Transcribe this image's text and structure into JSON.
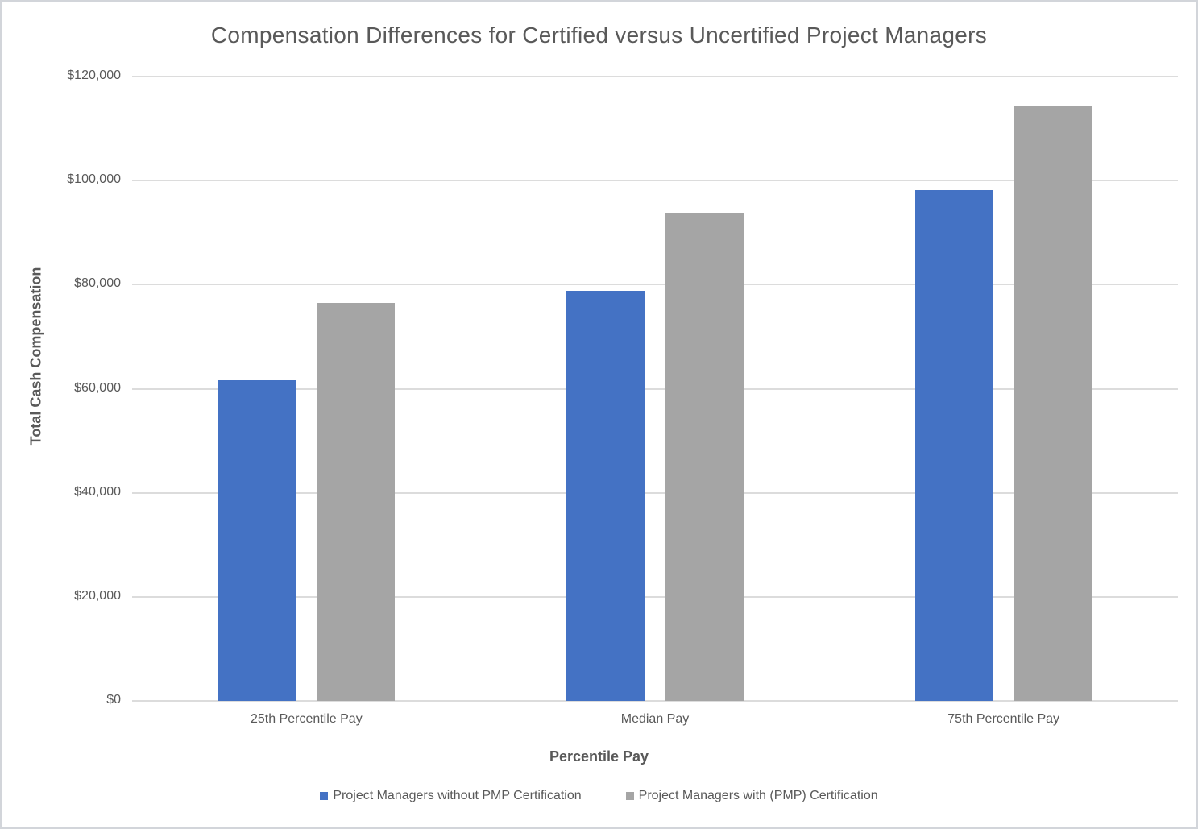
{
  "frame": {
    "background": "#ffffff",
    "border_color": "#d2d5da"
  },
  "chart_data": {
    "type": "bar",
    "title": "Compensation Differences for Certified versus Uncertified Project Managers",
    "xlabel": "Percentile Pay",
    "ylabel": "Total Cash Compensation",
    "categories": [
      "25th Percentile Pay",
      "Median Pay",
      "75th Percentile Pay"
    ],
    "series": [
      {
        "name": "Project Managers without PMP Certification",
        "color": "#4472C4",
        "values": [
          61700,
          78800,
          98200
        ]
      },
      {
        "name": "Project Managers with (PMP) Certification",
        "color": "#A5A5A5",
        "values": [
          76500,
          93800,
          114200
        ]
      }
    ],
    "ylim": [
      0,
      120000
    ],
    "y_ticks": [
      "$120,000",
      "$100,000",
      "$80,000",
      "$60,000",
      "$40,000",
      "$20,000",
      "$0"
    ],
    "grid": true,
    "grid_color": "#dcdcdc",
    "text_color": "#595959",
    "legend_position": "bottom"
  }
}
